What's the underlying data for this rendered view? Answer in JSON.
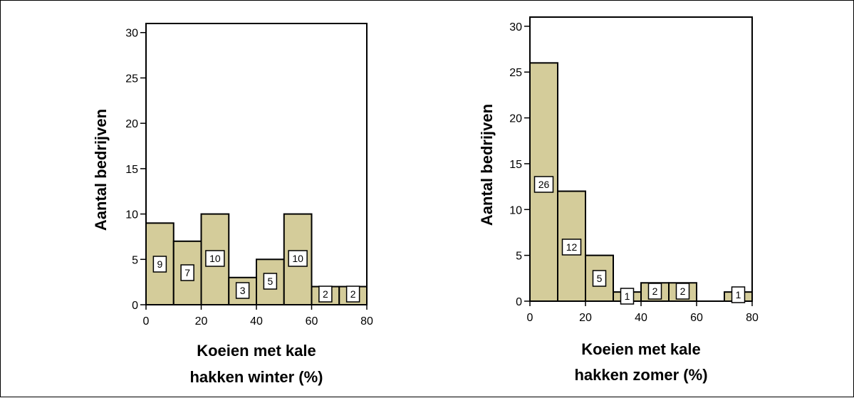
{
  "colors": {
    "bar_fill": "#d4cc9a",
    "bar_stroke": "#000000",
    "label_box": "#ffffff"
  },
  "chart_data": [
    {
      "type": "bar",
      "title": "",
      "xlabel_lines": [
        "Koeien met kale",
        "hakken winter (%)"
      ],
      "ylabel": "Aantal bedrijven",
      "xlim": [
        0,
        80
      ],
      "ylim": [
        0,
        31
      ],
      "xticks": [
        0,
        20,
        40,
        60,
        80
      ],
      "yticks": [
        0,
        5,
        10,
        15,
        20,
        25,
        30
      ],
      "bins": [
        [
          0,
          10
        ],
        [
          10,
          20
        ],
        [
          20,
          30
        ],
        [
          30,
          40
        ],
        [
          40,
          50
        ],
        [
          50,
          60
        ],
        [
          60,
          70
        ],
        [
          70,
          80
        ]
      ],
      "values": [
        9,
        7,
        10,
        3,
        5,
        10,
        2,
        2
      ],
      "data_labels": [
        "9",
        "7",
        "10",
        "3",
        "5",
        "10",
        "2",
        "2"
      ],
      "grid": false
    },
    {
      "type": "bar",
      "title": "",
      "xlabel_lines": [
        "Koeien met kale",
        "hakken zomer (%)"
      ],
      "ylabel": "Aantal bedrijven",
      "xlim": [
        0,
        80
      ],
      "ylim": [
        0,
        31
      ],
      "xticks": [
        0,
        20,
        40,
        60,
        80
      ],
      "yticks": [
        0,
        5,
        10,
        15,
        20,
        25,
        30
      ],
      "bins": [
        [
          0,
          10
        ],
        [
          10,
          20
        ],
        [
          20,
          30
        ],
        [
          30,
          40
        ],
        [
          40,
          50
        ],
        [
          50,
          60
        ],
        [
          60,
          70
        ],
        [
          70,
          80
        ]
      ],
      "values": [
        26,
        12,
        5,
        1,
        2,
        2,
        0,
        1
      ],
      "data_labels": [
        "26",
        "12",
        "5",
        "1",
        "2",
        "2",
        "",
        "1"
      ],
      "grid": false
    }
  ]
}
